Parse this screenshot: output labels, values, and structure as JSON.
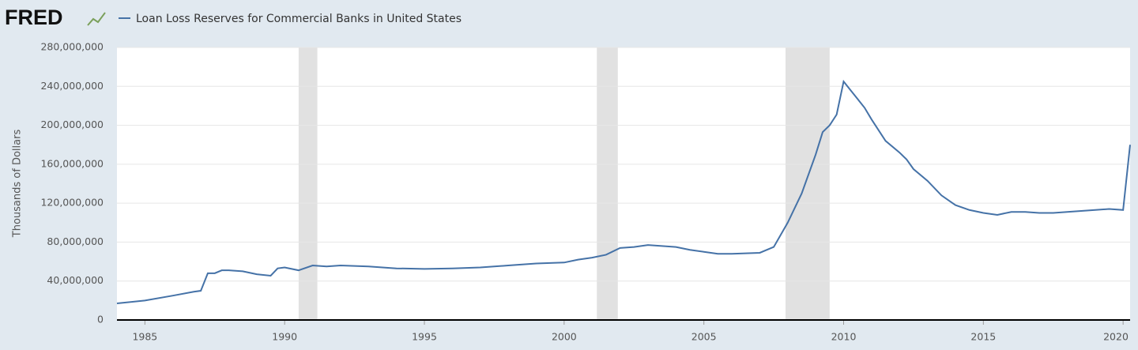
{
  "brand": "FRED",
  "chart_data": {
    "type": "line",
    "y_label": "Thousands of Dollars",
    "series": [
      {
        "name": "Loan Loss Reserves for Commercial Banks in United States",
        "color": "#4572a7",
        "x": [
          1984,
          1985,
          1986,
          1986.75,
          1987,
          1987.25,
          1987.5,
          1987.75,
          1988,
          1988.5,
          1989,
          1989.5,
          1989.75,
          1990,
          1990.5,
          1991,
          1991.5,
          1992,
          1993,
          1994,
          1995,
          1996,
          1997,
          1998,
          1999,
          2000,
          2000.5,
          2001,
          2001.5,
          2002,
          2002.5,
          2003,
          2003.5,
          2004,
          2004.5,
          2005,
          2005.5,
          2006,
          2007,
          2007.5,
          2008,
          2008.5,
          2009,
          2009.25,
          2009.5,
          2009.75,
          2010,
          2010.25,
          2010.5,
          2010.75,
          2011,
          2011.5,
          2012,
          2012.25,
          2012.5,
          2013,
          2013.5,
          2014,
          2014.5,
          2015,
          2015.5,
          2016,
          2016.5,
          2017,
          2017.5,
          2018,
          2018.5,
          2019,
          2019.5,
          2020,
          2020.25
        ],
        "values": [
          17000000,
          20000000,
          25000000,
          29000000,
          30000000,
          48000000,
          48000000,
          51000000,
          51000000,
          50000000,
          47000000,
          45500000,
          53000000,
          54000000,
          51000000,
          56000000,
          55000000,
          56000000,
          55000000,
          53000000,
          52500000,
          53000000,
          54000000,
          56000000,
          58000000,
          59000000,
          62000000,
          64000000,
          67000000,
          74000000,
          75000000,
          77000000,
          76000000,
          75000000,
          72000000,
          70000000,
          68000000,
          68000000,
          69000000,
          75000000,
          100000000,
          130000000,
          170000000,
          193000000,
          200000000,
          211000000,
          245000000,
          236000000,
          227000000,
          218000000,
          206000000,
          184000000,
          172000000,
          165000000,
          155000000,
          143000000,
          128000000,
          118000000,
          113000000,
          110000000,
          108000000,
          111000000,
          111000000,
          110000000,
          110000000,
          111000000,
          112000000,
          113000000,
          114000000,
          113000000,
          180000000
        ]
      }
    ],
    "recessions": [
      [
        1990.5,
        1991.17
      ],
      [
        2001.17,
        2001.92
      ],
      [
        2007.92,
        2009.5
      ]
    ],
    "xlim": [
      1984,
      2020.25
    ],
    "xticks": [
      1985,
      1990,
      1995,
      2000,
      2005,
      2010,
      2015,
      2020
    ],
    "ylim": [
      0,
      280000000
    ],
    "yticks": [
      0,
      {
        "value": 40000000,
        "label": "40,000,000"
      },
      {
        "value": 80000000,
        "label": "80,000,000"
      },
      {
        "value": 120000000,
        "label": "120,000,000"
      },
      {
        "value": 160000000,
        "label": "160,000,000"
      },
      {
        "value": 200000000,
        "label": "200,000,000"
      },
      {
        "value": 240000000,
        "label": "240,000,000"
      },
      {
        "value": 280000000,
        "label": "280,000,000"
      }
    ],
    "grid": true
  }
}
